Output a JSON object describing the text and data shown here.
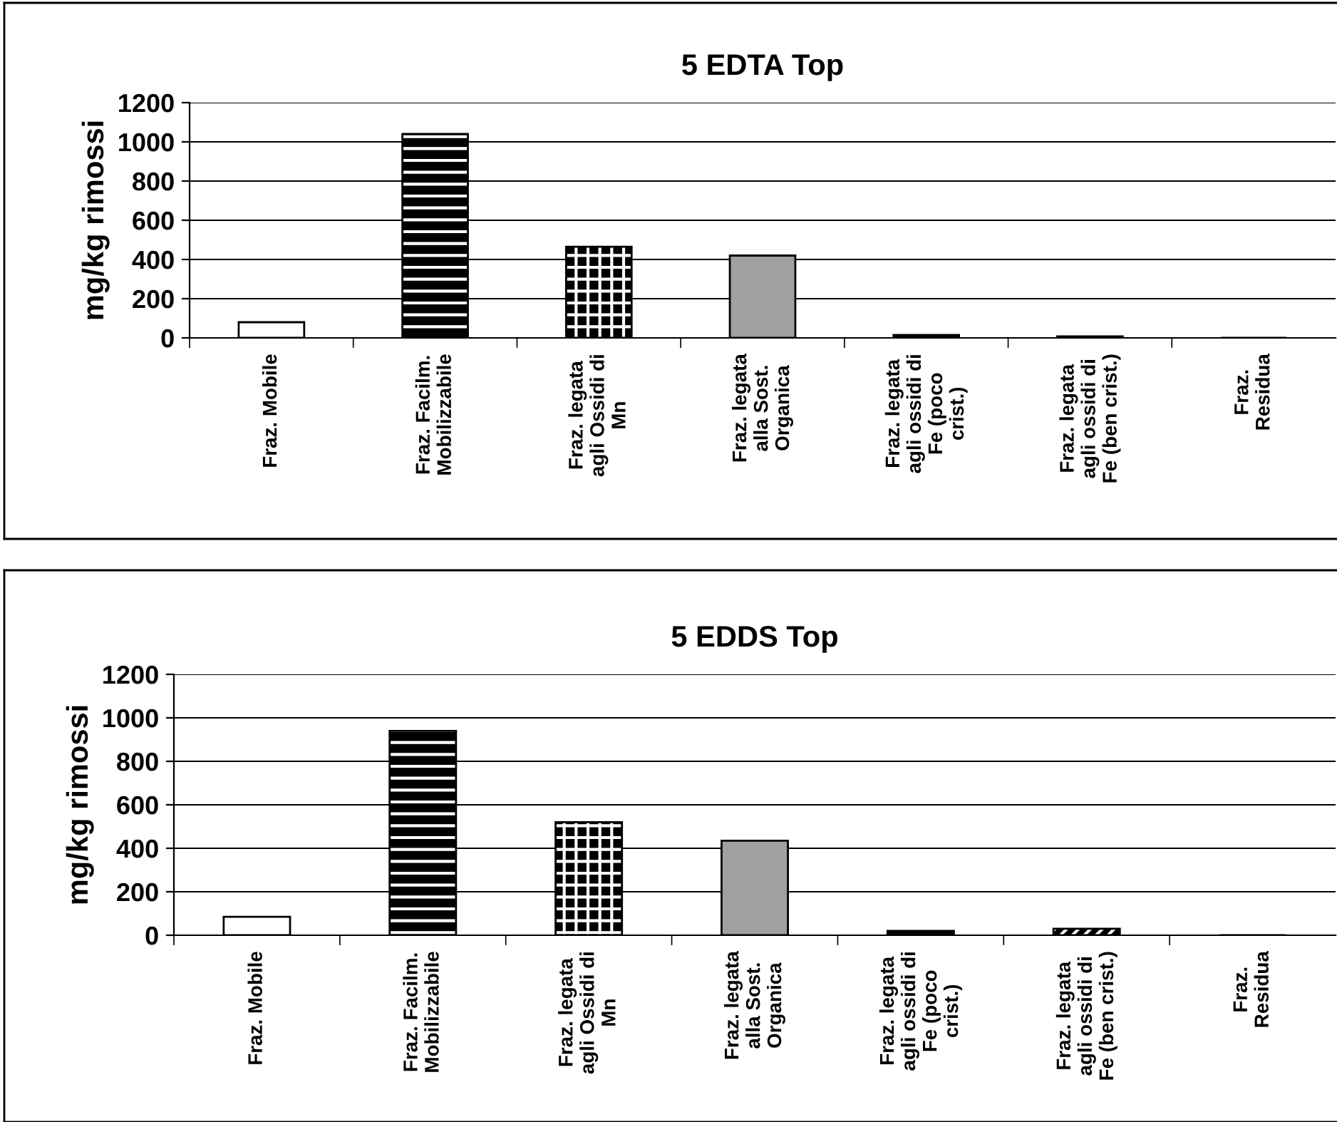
{
  "chart_data": [
    {
      "type": "bar",
      "title": "5 EDTA Top",
      "ylabel": "mg/kg rimossi",
      "categories": [
        "Fraz. Mobile",
        "Fraz. Facilm.\nMobilizzabile",
        "Fraz. legata\nagli Ossidi di\nMn",
        "Fraz. legata\nalla Sost.\nOrganica",
        "Fraz. legata\nagli ossidi di\nFe (poco\ncrist.)",
        "Fraz. legata\nagli ossidi di\nFe (ben crist.)",
        "Fraz.\nResidua"
      ],
      "values": [
        80,
        1040,
        465,
        420,
        15,
        8,
        0
      ],
      "colors": [
        "#ffffff",
        "#000000",
        "#000000",
        "#a0a0a0",
        "#000000",
        "#000000",
        "#000000"
      ],
      "ylim": [
        0,
        1200
      ],
      "yticks": [
        0,
        200,
        400,
        600,
        800,
        1000,
        1200
      ],
      "grid": "y"
    },
    {
      "type": "bar",
      "title": "5 EDDS Top",
      "ylabel": "mg/kg rimossi",
      "categories": [
        "Fraz. Mobile",
        "Fraz. Facilm.\nMobilizzabile",
        "Fraz. legata\nagli Ossidi di\nMn",
        "Fraz. legata\nalla Sost.\nOrganica",
        "Fraz. legata\nagli ossidi di\nFe (poco\ncrist.)",
        "Fraz. legata\nagli ossidi di\nFe (ben crist.)",
        "Fraz.\nResidua"
      ],
      "values": [
        85,
        940,
        520,
        435,
        20,
        30,
        0
      ],
      "colors": [
        "#ffffff",
        "#000000",
        "#000000",
        "#a0a0a0",
        "#000000",
        "#000000",
        "#000000"
      ],
      "ylim": [
        0,
        1200
      ],
      "yticks": [
        0,
        200,
        400,
        600,
        800,
        1000,
        1200
      ],
      "grid": "y"
    }
  ]
}
